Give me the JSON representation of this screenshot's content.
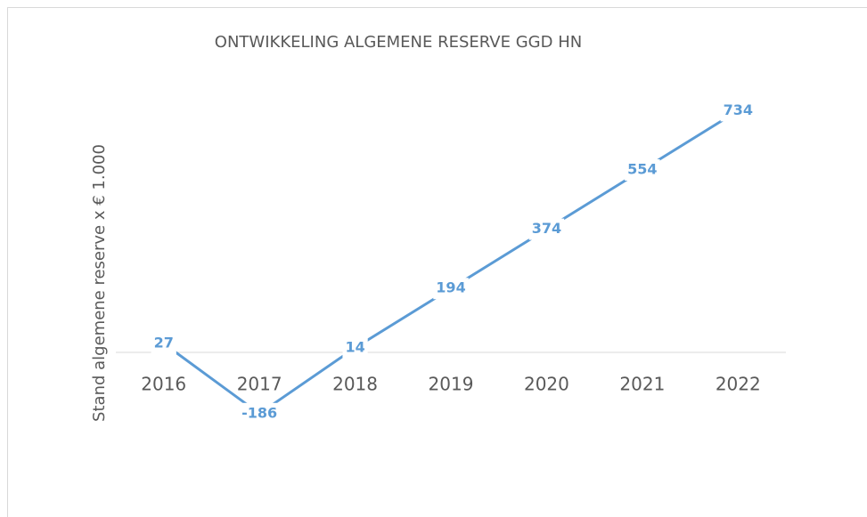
{
  "chart_data": {
    "type": "line",
    "title": "ONTWIKKELING ALGEMENE RESERVE GGD HN",
    "y_label": "Stand algemene reserve x € 1.000",
    "categories": [
      "2016",
      "2017",
      "2018",
      "2019",
      "2020",
      "2021",
      "2022"
    ],
    "values": [
      27,
      -186,
      14,
      194,
      374,
      554,
      734
    ],
    "color": "#5b9bd5",
    "ylim": [
      -400,
      900
    ]
  }
}
